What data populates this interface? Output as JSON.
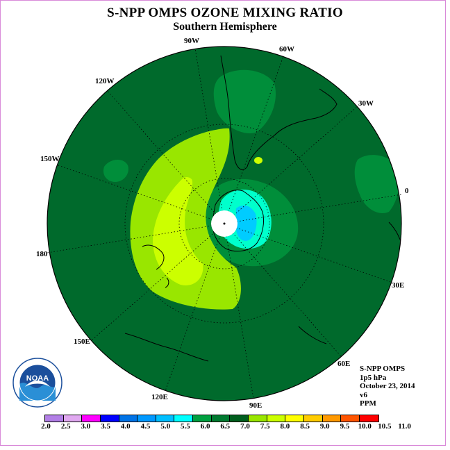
{
  "header": {
    "title": "S-NPP OMPS OZONE MIXING RATIO",
    "subtitle": "Southern Hemisphere"
  },
  "map": {
    "projection": "south-polar-stereographic",
    "longitude_labels": [
      "90W",
      "60W",
      "30W",
      "0",
      "30E",
      "60E",
      "90E",
      "120E",
      "150E",
      "180",
      "150W",
      "120W"
    ],
    "colors": {
      "background_field": "#006a2c",
      "mid_green": "#008e3a",
      "yellow_green": "#99e600",
      "lime": "#ccff00",
      "cyan": "#00ffcc",
      "light_blue": "#00ccff",
      "land_outline": "#000000",
      "pole_fill": "#ffffff"
    }
  },
  "info": {
    "instrument": "S-NPP OMPS",
    "level": "1p5 hPa",
    "date": "October 23, 2014",
    "version": "v6",
    "units": "PPM"
  },
  "colorbar": {
    "ticks": [
      "2.0",
      "2.5",
      "3.0",
      "3.5",
      "4.0",
      "4.5",
      "5.0",
      "5.5",
      "6.0",
      "6.5",
      "7.0",
      "7.5",
      "8.0",
      "8.5",
      "9.0",
      "9.5",
      "10.0",
      "10.5",
      "11.0"
    ],
    "colors": [
      "#b27fe6",
      "#e0a8f0",
      "#ff00ff",
      "#0000ff",
      "#0073e6",
      "#0099ff",
      "#00bfff",
      "#00ffff",
      "#00a040",
      "#007a30",
      "#005e1e",
      "#99e600",
      "#ccff00",
      "#ffff00",
      "#ffcc00",
      "#ff9900",
      "#ff5500",
      "#ff0000",
      "#804000"
    ]
  },
  "logo": {
    "text": "NOAA",
    "ring_text": "NATIONAL OCEANIC AND ATMOSPHERIC ADMINISTRATION · U.S. DEPARTMENT OF COMMERCE"
  }
}
